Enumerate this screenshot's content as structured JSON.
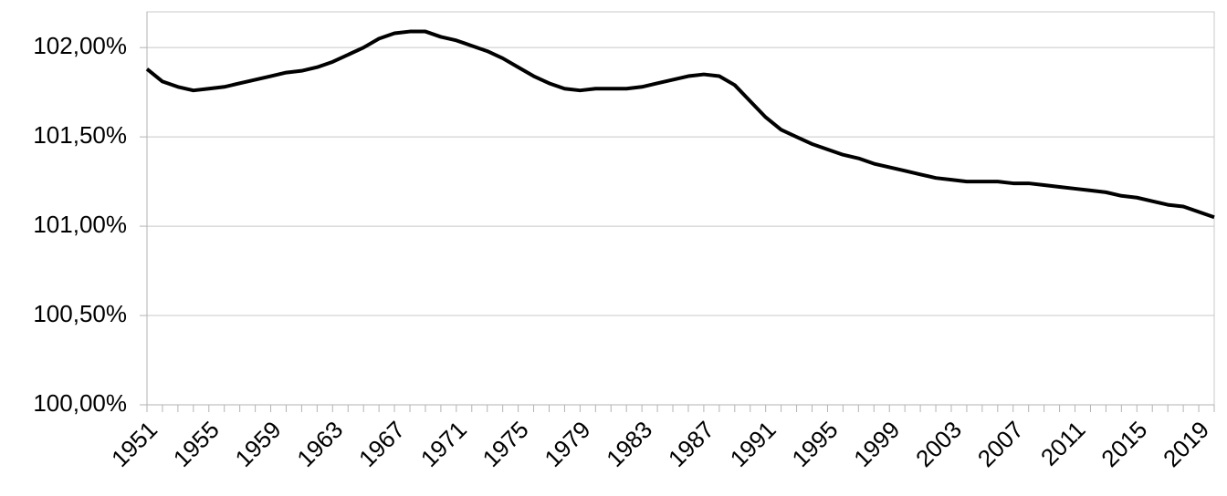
{
  "chart_data": {
    "type": "line",
    "categories": [
      "1951",
      null,
      null,
      null,
      "1955",
      null,
      null,
      null,
      "1959",
      null,
      null,
      null,
      "1963",
      null,
      null,
      null,
      "1967",
      null,
      null,
      null,
      "1971",
      null,
      null,
      null,
      "1975",
      null,
      null,
      null,
      "1979",
      null,
      null,
      null,
      "1983",
      null,
      null,
      null,
      "1987",
      null,
      null,
      null,
      "1991",
      null,
      null,
      null,
      "1995",
      null,
      null,
      null,
      "1999",
      null,
      null,
      null,
      "2003",
      null,
      null,
      null,
      "2007",
      null,
      null,
      null,
      "2011",
      null,
      null,
      null,
      "2015",
      null,
      null,
      null,
      "2019",
      null
    ],
    "series": [
      {
        "color": "#000000",
        "values": [
          101.88,
          101.81,
          101.78,
          101.76,
          101.77,
          101.78,
          101.8,
          101.82,
          101.84,
          101.86,
          101.87,
          101.89,
          101.92,
          101.96,
          102.0,
          102.05,
          102.08,
          102.09,
          102.09,
          102.06,
          102.04,
          102.01,
          101.98,
          101.94,
          101.89,
          101.84,
          101.8,
          101.77,
          101.76,
          101.77,
          101.77,
          101.77,
          101.78,
          101.8,
          101.82,
          101.84,
          101.85,
          101.84,
          101.79,
          101.7,
          101.61,
          101.54,
          101.5,
          101.46,
          101.43,
          101.4,
          101.38,
          101.35,
          101.33,
          101.31,
          101.29,
          101.27,
          101.26,
          101.25,
          101.25,
          101.25,
          101.24,
          101.24,
          101.23,
          101.22,
          101.21,
          101.2,
          101.19,
          101.17,
          101.16,
          101.14,
          101.12,
          101.11,
          101.08,
          101.05
        ]
      }
    ],
    "ylim": [
      100,
      102.2
    ],
    "yticks": [
      {
        "value": 100,
        "label": "100,00%"
      },
      {
        "value": 100.5,
        "label": "100,50%"
      },
      {
        "value": 101,
        "label": "101,00%"
      },
      {
        "value": 101.5,
        "label": "101,50%"
      },
      {
        "value": 102,
        "label": "102,00%"
      }
    ],
    "grid": true
  }
}
